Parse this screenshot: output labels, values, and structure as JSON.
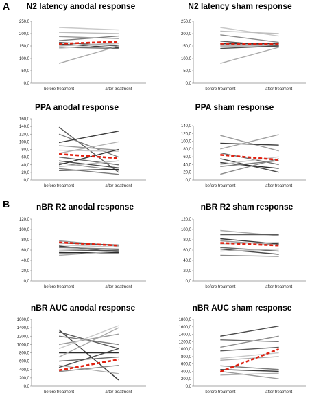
{
  "figure": {
    "label_a": "A",
    "label_b": "B"
  },
  "chart_data": [
    {
      "type": "line",
      "title": "N2 latency anodal response",
      "categories": [
        "before treatment",
        "after treatment"
      ],
      "ylim": [
        0,
        250
      ],
      "ytick_labels": [
        "0,0",
        "50,0",
        "100,0",
        "150,0",
        "200,0",
        "250,0"
      ],
      "series": [
        {
          "values": [
            225,
            215
          ],
          "color": "#c8c8c8"
        },
        {
          "values": [
            205,
            200
          ],
          "color": "#bdbdbd"
        },
        {
          "values": [
            188,
            180
          ],
          "color": "#9a9a9a"
        },
        {
          "values": [
            172,
            190
          ],
          "color": "#7a7a7a"
        },
        {
          "values": [
            165,
            150
          ],
          "color": "#5a5a5a"
        },
        {
          "values": [
            158,
            143
          ],
          "color": "#3a3a3a"
        },
        {
          "values": [
            150,
            162
          ],
          "color": "#b0b0b0"
        },
        {
          "values": [
            145,
            140
          ],
          "color": "#6e6e6e"
        },
        {
          "values": [
            140,
            160
          ],
          "color": "#d0d0d0"
        },
        {
          "values": [
            80,
            150
          ],
          "color": "#aaaaaa"
        },
        {
          "values": [
            159,
            168
          ],
          "color": "#e02010",
          "dashed": true
        }
      ]
    },
    {
      "type": "line",
      "title": "N2 latency sham response",
      "categories": [
        "before treatment",
        "after treatment"
      ],
      "ylim": [
        0,
        250
      ],
      "ytick_labels": [
        "0,0",
        "50,0",
        "100,0",
        "150,0",
        "200,0",
        "250,0"
      ],
      "series": [
        {
          "values": [
            225,
            190
          ],
          "color": "#c8c8c8"
        },
        {
          "values": [
            210,
            200
          ],
          "color": "#bdbdbd"
        },
        {
          "values": [
            195,
            165
          ],
          "color": "#8a8a8a"
        },
        {
          "values": [
            170,
            150
          ],
          "color": "#5a5a5a"
        },
        {
          "values": [
            160,
            160
          ],
          "color": "#3a3a3a"
        },
        {
          "values": [
            155,
            155
          ],
          "color": "#707070"
        },
        {
          "values": [
            150,
            150
          ],
          "color": "#a0a0a0"
        },
        {
          "values": [
            140,
            150
          ],
          "color": "#4a4a4a"
        },
        {
          "values": [
            80,
            145
          ],
          "color": "#aaaaaa"
        },
        {
          "values": [
            160,
            157
          ],
          "color": "#e02010",
          "dashed": true
        }
      ]
    },
    {
      "type": "line",
      "title": "PPA anodal response",
      "categories": [
        "before treatment",
        "after treatment"
      ],
      "ylim": [
        0,
        160
      ],
      "ytick_labels": [
        "0,0",
        "20,0",
        "40,0",
        "60,0",
        "80,0",
        "100,0",
        "120,0",
        "140,0",
        "160,0"
      ],
      "series": [
        {
          "values": [
            138,
            20
          ],
          "color": "#5a5a5a"
        },
        {
          "values": [
            120,
            60
          ],
          "color": "#7a7a7a"
        },
        {
          "values": [
            98,
            128
          ],
          "color": "#3a3a3a"
        },
        {
          "values": [
            90,
            78
          ],
          "color": "#9a9a9a"
        },
        {
          "values": [
            78,
            75
          ],
          "color": "#c8c8c8"
        },
        {
          "values": [
            70,
            100
          ],
          "color": "#b0b0b0"
        },
        {
          "values": [
            60,
            40
          ],
          "color": "#6a6a6a"
        },
        {
          "values": [
            50,
            32
          ],
          "color": "#4a4a4a"
        },
        {
          "values": [
            45,
            25
          ],
          "color": "#8a8a8a"
        },
        {
          "values": [
            40,
            80
          ],
          "color": "#3a3a3a"
        },
        {
          "values": [
            35,
            50
          ],
          "color": "#bdbdbd"
        },
        {
          "values": [
            30,
            15
          ],
          "color": "#7a7a7a"
        },
        {
          "values": [
            25,
            28
          ],
          "color": "#2a2a2a"
        },
        {
          "values": [
            68,
            57
          ],
          "color": "#e02010",
          "dashed": true
        }
      ]
    },
    {
      "type": "line",
      "title": "PPA sham response",
      "categories": [
        "before treatment",
        "after treatment"
      ],
      "ylim": [
        0,
        140
      ],
      "ytick_labels": [
        "0,0",
        "20,0",
        "40,0",
        "60,0",
        "80,0",
        "100,0",
        "120,0",
        "140,0"
      ],
      "series": [
        {
          "values": [
            115,
            75
          ],
          "color": "#9a9a9a"
        },
        {
          "values": [
            95,
            90
          ],
          "color": "#3a3a3a"
        },
        {
          "values": [
            80,
            117
          ],
          "color": "#a0a0a0"
        },
        {
          "values": [
            70,
            40
          ],
          "color": "#6a6a6a"
        },
        {
          "values": [
            55,
            20
          ],
          "color": "#4a4a4a"
        },
        {
          "values": [
            45,
            30
          ],
          "color": "#2a2a2a"
        },
        {
          "values": [
            40,
            60
          ],
          "color": "#c8c8c8"
        },
        {
          "values": [
            35,
            50
          ],
          "color": "#7a7a7a"
        },
        {
          "values": [
            15,
            55
          ],
          "color": "#8a8a8a"
        },
        {
          "values": [
            65,
            52
          ],
          "color": "#e02010",
          "dashed": true
        }
      ]
    },
    {
      "type": "line",
      "title": "nBR R2 anodal response",
      "categories": [
        "before treatment",
        "after treatment"
      ],
      "ylim": [
        0,
        120
      ],
      "ytick_labels": [
        "0,0",
        "20,0",
        "40,0",
        "60,0",
        "80,0",
        "100,0",
        "120,0"
      ],
      "series": [
        {
          "values": [
            78,
            68
          ],
          "color": "#9a9a9a"
        },
        {
          "values": [
            74,
            70
          ],
          "color": "#5a5a5a"
        },
        {
          "values": [
            70,
            66
          ],
          "color": "#c8c8c8"
        },
        {
          "values": [
            68,
            56
          ],
          "color": "#3a3a3a"
        },
        {
          "values": [
            65,
            62
          ],
          "color": "#7a7a7a"
        },
        {
          "values": [
            62,
            58
          ],
          "color": "#b0b0b0"
        },
        {
          "values": [
            58,
            60
          ],
          "color": "#4a4a4a"
        },
        {
          "values": [
            55,
            55
          ],
          "color": "#2a2a2a"
        },
        {
          "values": [
            50,
            58
          ],
          "color": "#aaaaaa"
        },
        {
          "values": [
            75,
            69
          ],
          "color": "#e02010",
          "dashed": true
        }
      ]
    },
    {
      "type": "line",
      "title": "nBR R2 sham response",
      "categories": [
        "before treatment",
        "after treatment"
      ],
      "ylim": [
        0,
        120
      ],
      "ytick_labels": [
        "0,0",
        "20,0",
        "40,0",
        "60,0",
        "80,0",
        "100,0",
        "120,0"
      ],
      "series": [
        {
          "values": [
            98,
            88
          ],
          "color": "#aaaaaa"
        },
        {
          "values": [
            90,
            90
          ],
          "color": "#5a5a5a"
        },
        {
          "values": [
            82,
            72
          ],
          "color": "#3a3a3a"
        },
        {
          "values": [
            78,
            70
          ],
          "color": "#9a9a9a"
        },
        {
          "values": [
            72,
            75
          ],
          "color": "#c8c8c8"
        },
        {
          "values": [
            65,
            58
          ],
          "color": "#6a6a6a"
        },
        {
          "values": [
            62,
            52
          ],
          "color": "#4a4a4a"
        },
        {
          "values": [
            58,
            62
          ],
          "color": "#b0b0b0"
        },
        {
          "values": [
            50,
            48
          ],
          "color": "#8a8a8a"
        },
        {
          "values": [
            74,
            69
          ],
          "color": "#e02010",
          "dashed": true
        }
      ]
    },
    {
      "type": "line",
      "title": "nBR AUC anodal response",
      "categories": [
        "before treatment",
        "after treatment"
      ],
      "ylim": [
        0,
        1600
      ],
      "ytick_labels": [
        "0,0",
        "200,0",
        "400,0",
        "600,0",
        "800,0",
        "1000,0",
        "1200,0",
        "1400,0",
        "1600,0"
      ],
      "series": [
        {
          "values": [
            1350,
            150
          ],
          "color": "#3a3a3a"
        },
        {
          "values": [
            1300,
            900
          ],
          "color": "#5a5a5a"
        },
        {
          "values": [
            1200,
            1000
          ],
          "color": "#7a7a7a"
        },
        {
          "values": [
            1000,
            1250
          ],
          "color": "#9a9a9a"
        },
        {
          "values": [
            900,
            1450
          ],
          "color": "#c8c8c8"
        },
        {
          "values": [
            800,
            800
          ],
          "color": "#2a2a2a"
        },
        {
          "values": [
            700,
            1400
          ],
          "color": "#aaaaaa"
        },
        {
          "values": [
            600,
            700
          ],
          "color": "#6a6a6a"
        },
        {
          "values": [
            500,
            300
          ],
          "color": "#b0b0b0"
        },
        {
          "values": [
            450,
            900
          ],
          "color": "#4a4a4a"
        },
        {
          "values": [
            350,
            500
          ],
          "color": "#8a8a8a"
        },
        {
          "values": [
            380,
            640
          ],
          "color": "#e02010",
          "dashed": true
        }
      ]
    },
    {
      "type": "line",
      "title": "nBR AUC sham response",
      "categories": [
        "before treatment",
        "after treatment"
      ],
      "ylim": [
        0,
        1800
      ],
      "ytick_labels": [
        "0,0",
        "200,0",
        "400,0",
        "600,0",
        "800,0",
        "1000,0",
        "1200,0",
        "1400,0",
        "1600,0",
        "1800,0"
      ],
      "series": [
        {
          "values": [
            1350,
            1620
          ],
          "color": "#4a4a4a"
        },
        {
          "values": [
            1250,
            1200
          ],
          "color": "#6a6a6a"
        },
        {
          "values": [
            1050,
            1350
          ],
          "color": "#8a8a8a"
        },
        {
          "values": [
            950,
            1050
          ],
          "color": "#5a5a5a"
        },
        {
          "values": [
            750,
            900
          ],
          "color": "#c8c8c8"
        },
        {
          "values": [
            700,
            800
          ],
          "color": "#aaaaaa"
        },
        {
          "values": [
            550,
            450
          ],
          "color": "#7a7a7a"
        },
        {
          "values": [
            450,
            400
          ],
          "color": "#3a3a3a"
        },
        {
          "values": [
            400,
            200
          ],
          "color": "#9a9a9a"
        },
        {
          "values": [
            300,
            350
          ],
          "color": "#b0b0b0"
        },
        {
          "values": [
            390,
            1000
          ],
          "color": "#e02010",
          "dashed": true
        }
      ]
    }
  ]
}
